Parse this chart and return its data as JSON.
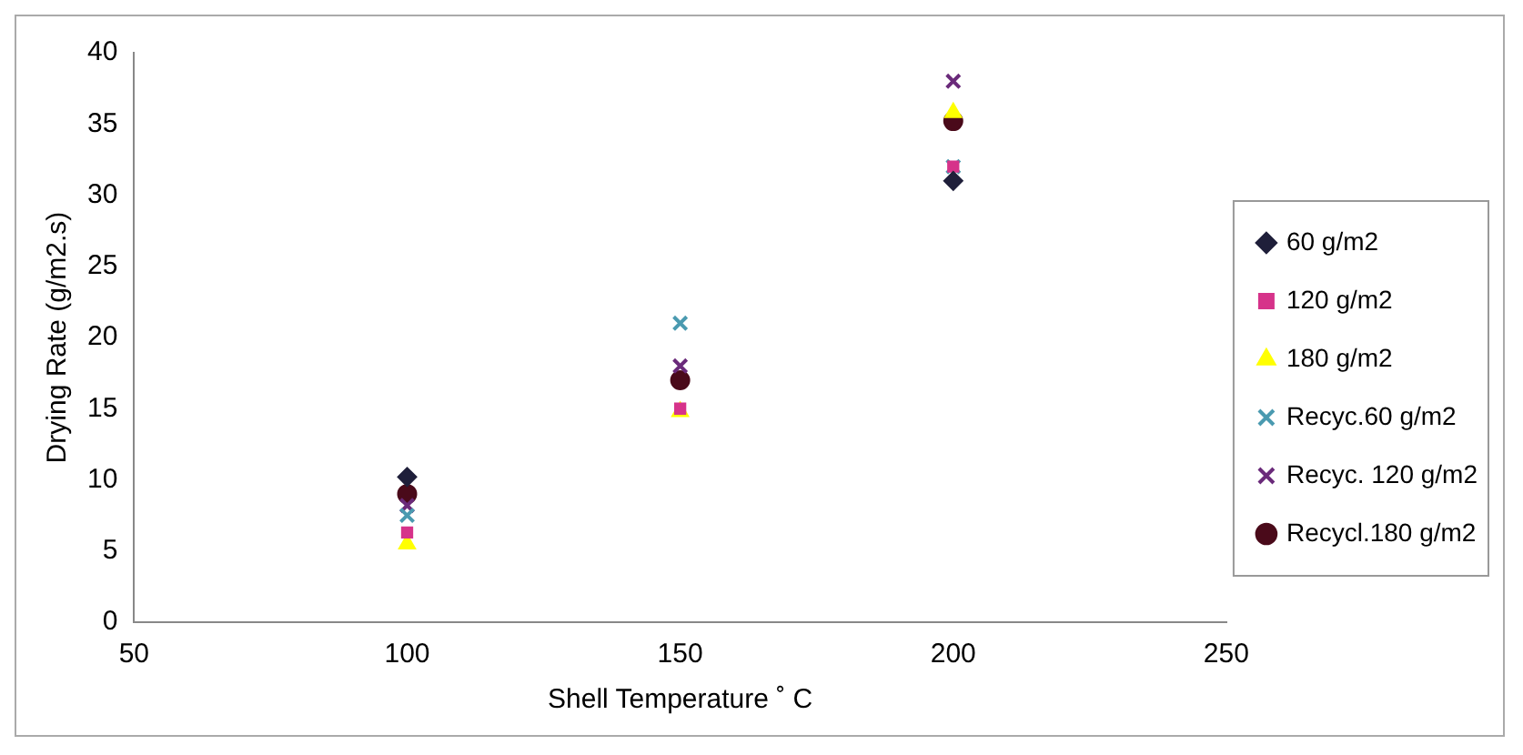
{
  "chart_data": {
    "type": "scatter",
    "xlabel": "Shell Temperature ˚ C",
    "ylabel": "Drying Rate (g/m2.s)",
    "xlim": [
      50,
      250
    ],
    "xticks": [
      50,
      100,
      150,
      200,
      250
    ],
    "ylim": [
      0,
      40
    ],
    "yticks": [
      0,
      5,
      10,
      15,
      20,
      25,
      30,
      35,
      40
    ],
    "grid": false,
    "legend": "right",
    "x": [
      100,
      150,
      200
    ],
    "series": [
      {
        "name": "60 g/m2",
        "color": "#1f1f3a",
        "marker": "diamond",
        "values": [
          10.2,
          null,
          31
        ]
      },
      {
        "name": "120 g/m2",
        "color": "#d6338a",
        "marker": "square",
        "values": [
          6.3,
          15,
          32
        ]
      },
      {
        "name": "180 g/m2",
        "color": "#ffff00",
        "marker": "triangle",
        "values": [
          5.5,
          14.8,
          35.8
        ]
      },
      {
        "name": "Recyc.60 g/m2",
        "color": "#4a9ab0",
        "marker": "cross",
        "values": [
          7.5,
          21,
          32
        ]
      },
      {
        "name": "Recyc. 120 g/m2",
        "color": "#6a2a7a",
        "marker": "cross",
        "values": [
          8.2,
          18,
          38
        ]
      },
      {
        "name": "Recycl.180 g/m2",
        "color": "#4a0a1a",
        "marker": "circle",
        "values": [
          9,
          17,
          35.2
        ]
      }
    ]
  }
}
